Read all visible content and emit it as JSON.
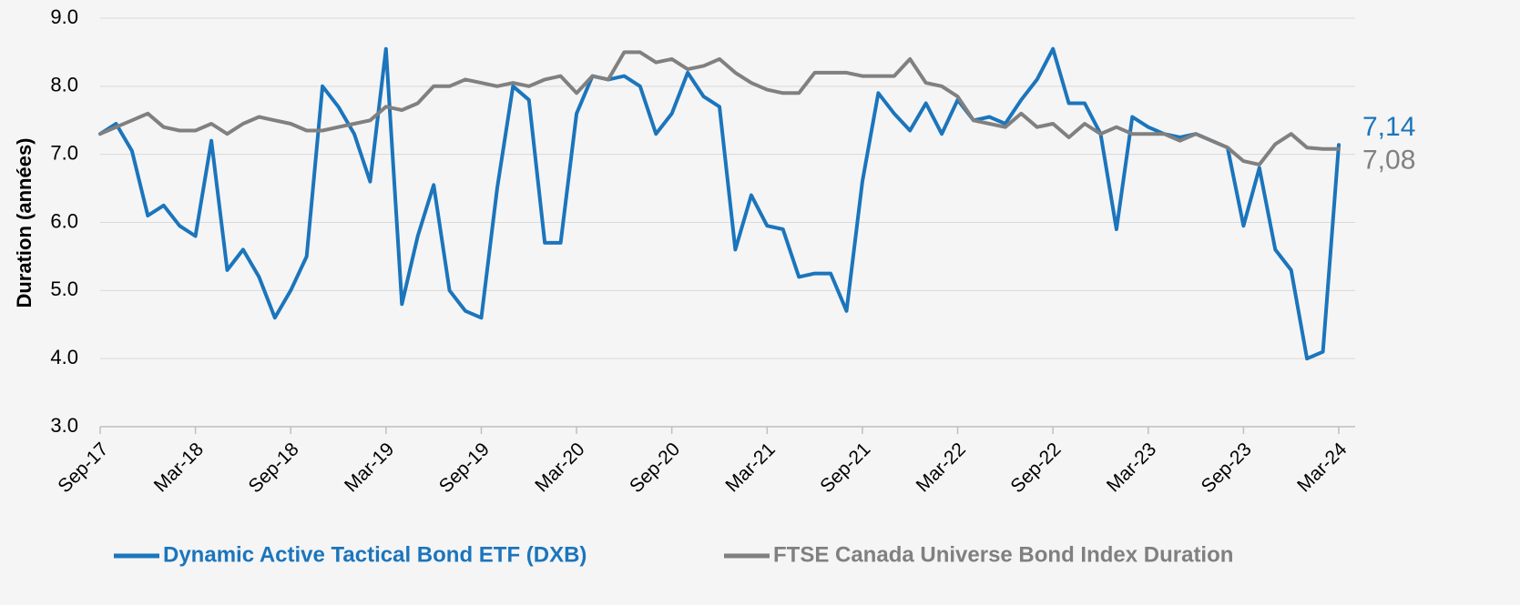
{
  "chart_data": {
    "type": "line",
    "y_label": "Duration (années)",
    "categories": [
      "Sep-17",
      null,
      null,
      null,
      null,
      null,
      "Mar-18",
      null,
      null,
      null,
      null,
      null,
      "Sep-18",
      null,
      null,
      null,
      null,
      null,
      "Mar-19",
      null,
      null,
      null,
      null,
      null,
      "Sep-19",
      null,
      null,
      null,
      null,
      null,
      "Mar-20",
      null,
      null,
      null,
      null,
      null,
      "Sep-20",
      null,
      null,
      null,
      null,
      null,
      "Mar-21",
      null,
      null,
      null,
      null,
      null,
      "Sep-21",
      null,
      null,
      null,
      null,
      null,
      "Mar-22",
      null,
      null,
      null,
      null,
      null,
      "Sep-22",
      null,
      null,
      null,
      null,
      null,
      "Mar-23",
      null,
      null,
      null,
      null,
      null,
      "Sep-23",
      null,
      null,
      null,
      null,
      null,
      "Mar-24"
    ],
    "series": [
      {
        "name": "Dynamic Active Tactical Bond ETF (DXB)",
        "color": "#1b75bc",
        "values": [
          7.3,
          7.45,
          7.05,
          6.1,
          6.25,
          5.95,
          5.8,
          7.2,
          5.3,
          5.6,
          5.2,
          4.6,
          5.0,
          5.5,
          8.0,
          7.7,
          7.3,
          6.6,
          8.55,
          4.8,
          5.8,
          6.55,
          5.0,
          4.7,
          4.6,
          6.5,
          8.0,
          7.8,
          5.7,
          5.7,
          7.6,
          8.15,
          8.1,
          8.15,
          8.0,
          7.3,
          7.6,
          8.2,
          7.85,
          7.7,
          5.6,
          6.4,
          5.95,
          5.9,
          5.2,
          5.25,
          5.25,
          4.7,
          6.6,
          7.9,
          7.6,
          7.35,
          7.75,
          7.3,
          7.8,
          7.5,
          7.55,
          7.45,
          7.8,
          8.1,
          8.55,
          7.75,
          7.75,
          7.3,
          5.9,
          7.55,
          7.4,
          7.3,
          7.25,
          7.3,
          7.2,
          7.1,
          5.95,
          6.8,
          5.6,
          5.3,
          4.0,
          4.1,
          7.14
        ],
        "value_labels": [
          null,
          null,
          null,
          null,
          null,
          null,
          null,
          null,
          null,
          null,
          null,
          null,
          null,
          null,
          null,
          null,
          null,
          null,
          null,
          null,
          null,
          null,
          null,
          null,
          null,
          null,
          null,
          null,
          null,
          null,
          null,
          null,
          null,
          null,
          null,
          null,
          null,
          null,
          null,
          null,
          null,
          null,
          null,
          null,
          null,
          null,
          null,
          null,
          null,
          null,
          null,
          null,
          null,
          null,
          null,
          null,
          null,
          null,
          null,
          null,
          null,
          null,
          null,
          null,
          null,
          null,
          null,
          null,
          null,
          null,
          null,
          null,
          null,
          null,
          null,
          null,
          null,
          null,
          "7,14"
        ]
      },
      {
        "name": "FTSE Canada Universe Bond Index Duration",
        "color": "#808080",
        "values": [
          7.3,
          7.4,
          7.5,
          7.6,
          7.4,
          7.35,
          7.35,
          7.45,
          7.3,
          7.45,
          7.55,
          7.5,
          7.45,
          7.35,
          7.35,
          7.4,
          7.45,
          7.5,
          7.7,
          7.65,
          7.75,
          8.0,
          8.0,
          8.1,
          8.05,
          8.0,
          8.05,
          8.0,
          8.1,
          8.15,
          7.9,
          8.15,
          8.1,
          8.5,
          8.5,
          8.35,
          8.4,
          8.25,
          8.3,
          8.4,
          8.2,
          8.05,
          7.95,
          7.9,
          7.9,
          8.2,
          8.2,
          8.2,
          8.15,
          8.15,
          8.15,
          8.4,
          8.05,
          8.0,
          7.85,
          7.5,
          7.45,
          7.4,
          7.6,
          7.4,
          7.45,
          7.25,
          7.45,
          7.3,
          7.4,
          7.3,
          7.3,
          7.3,
          7.2,
          7.3,
          7.2,
          7.1,
          6.9,
          6.85,
          7.15,
          7.3,
          7.1,
          7.08,
          7.08
        ],
        "value_labels": [
          null,
          null,
          null,
          null,
          null,
          null,
          null,
          null,
          null,
          null,
          null,
          null,
          null,
          null,
          null,
          null,
          null,
          null,
          null,
          null,
          null,
          null,
          null,
          null,
          null,
          null,
          null,
          null,
          null,
          null,
          null,
          null,
          null,
          null,
          null,
          null,
          null,
          null,
          null,
          null,
          null,
          null,
          null,
          null,
          null,
          null,
          null,
          null,
          null,
          null,
          null,
          null,
          null,
          null,
          null,
          null,
          null,
          null,
          null,
          null,
          null,
          null,
          null,
          null,
          null,
          null,
          null,
          null,
          null,
          null,
          null,
          null,
          null,
          null,
          null,
          null,
          null,
          null,
          "7,08"
        ]
      }
    ],
    "ylim": [
      3,
      9
    ],
    "yticks": [
      {
        "value": 3,
        "label": "3.0"
      },
      {
        "value": 4,
        "label": "4.0"
      },
      {
        "value": 5,
        "label": "5.0"
      },
      {
        "value": 6,
        "label": "6.0"
      },
      {
        "value": 7,
        "label": "7.0"
      },
      {
        "value": 8,
        "label": "8.0"
      },
      {
        "value": 9,
        "label": "9.0"
      }
    ],
    "grid": true,
    "legend": "bottom"
  }
}
